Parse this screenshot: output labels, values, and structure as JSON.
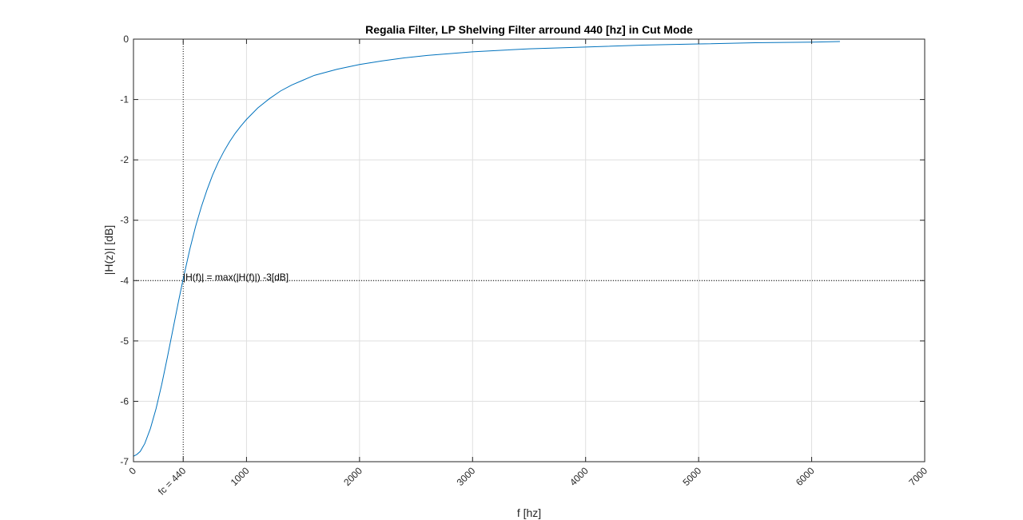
{
  "chart_data": {
    "type": "line",
    "title": "Regalia Filter, LP Shelving Filter arround 440 [hz] in Cut Mode",
    "xlabel": "f [hz]",
    "ylabel": "|H(z)| [dB]",
    "xlim": [
      0,
      7000
    ],
    "ylim": [
      -7,
      0
    ],
    "grid": true,
    "x_ticks": [
      0,
      440,
      1000,
      2000,
      3000,
      4000,
      5000,
      6000,
      7000
    ],
    "x_tick_labels": [
      "0",
      "fc = 440",
      "1000",
      "2000",
      "3000",
      "4000",
      "5000",
      "6000",
      "7000"
    ],
    "y_ticks": [
      0,
      -1,
      -2,
      -3,
      -4,
      -5,
      -6,
      -7
    ],
    "y_tick_labels": [
      "0",
      "-1",
      "-2",
      "-3",
      "-4",
      "-5",
      "-6",
      "-7"
    ],
    "series": [
      {
        "color": "#0072bd",
        "x": [
          0,
          30,
          60,
          100,
          150,
          200,
          250,
          300,
          350,
          400,
          440,
          500,
          550,
          600,
          650,
          700,
          750,
          800,
          850,
          900,
          950,
          1000,
          1100,
          1200,
          1300,
          1400,
          1500,
          1600,
          1800,
          2000,
          2200,
          2400,
          2600,
          2800,
          3000,
          3500,
          4000,
          4500,
          5000,
          5500,
          6000,
          6250
        ],
        "y": [
          -6.91,
          -6.88,
          -6.83,
          -6.7,
          -6.45,
          -6.12,
          -5.72,
          -5.27,
          -4.8,
          -4.33,
          -3.97,
          -3.47,
          -3.1,
          -2.78,
          -2.5,
          -2.25,
          -2.04,
          -1.86,
          -1.7,
          -1.56,
          -1.44,
          -1.33,
          -1.14,
          -0.99,
          -0.86,
          -0.76,
          -0.68,
          -0.6,
          -0.5,
          -0.42,
          -0.36,
          -0.31,
          -0.27,
          -0.24,
          -0.21,
          -0.16,
          -0.13,
          -0.1,
          -0.08,
          -0.06,
          -0.05,
          -0.04
        ]
      }
    ],
    "annotations": {
      "cutoff_x": 440,
      "level_y": -4,
      "level_text": "|H(f)| = max(|H(f)|) -3[dB]"
    }
  }
}
